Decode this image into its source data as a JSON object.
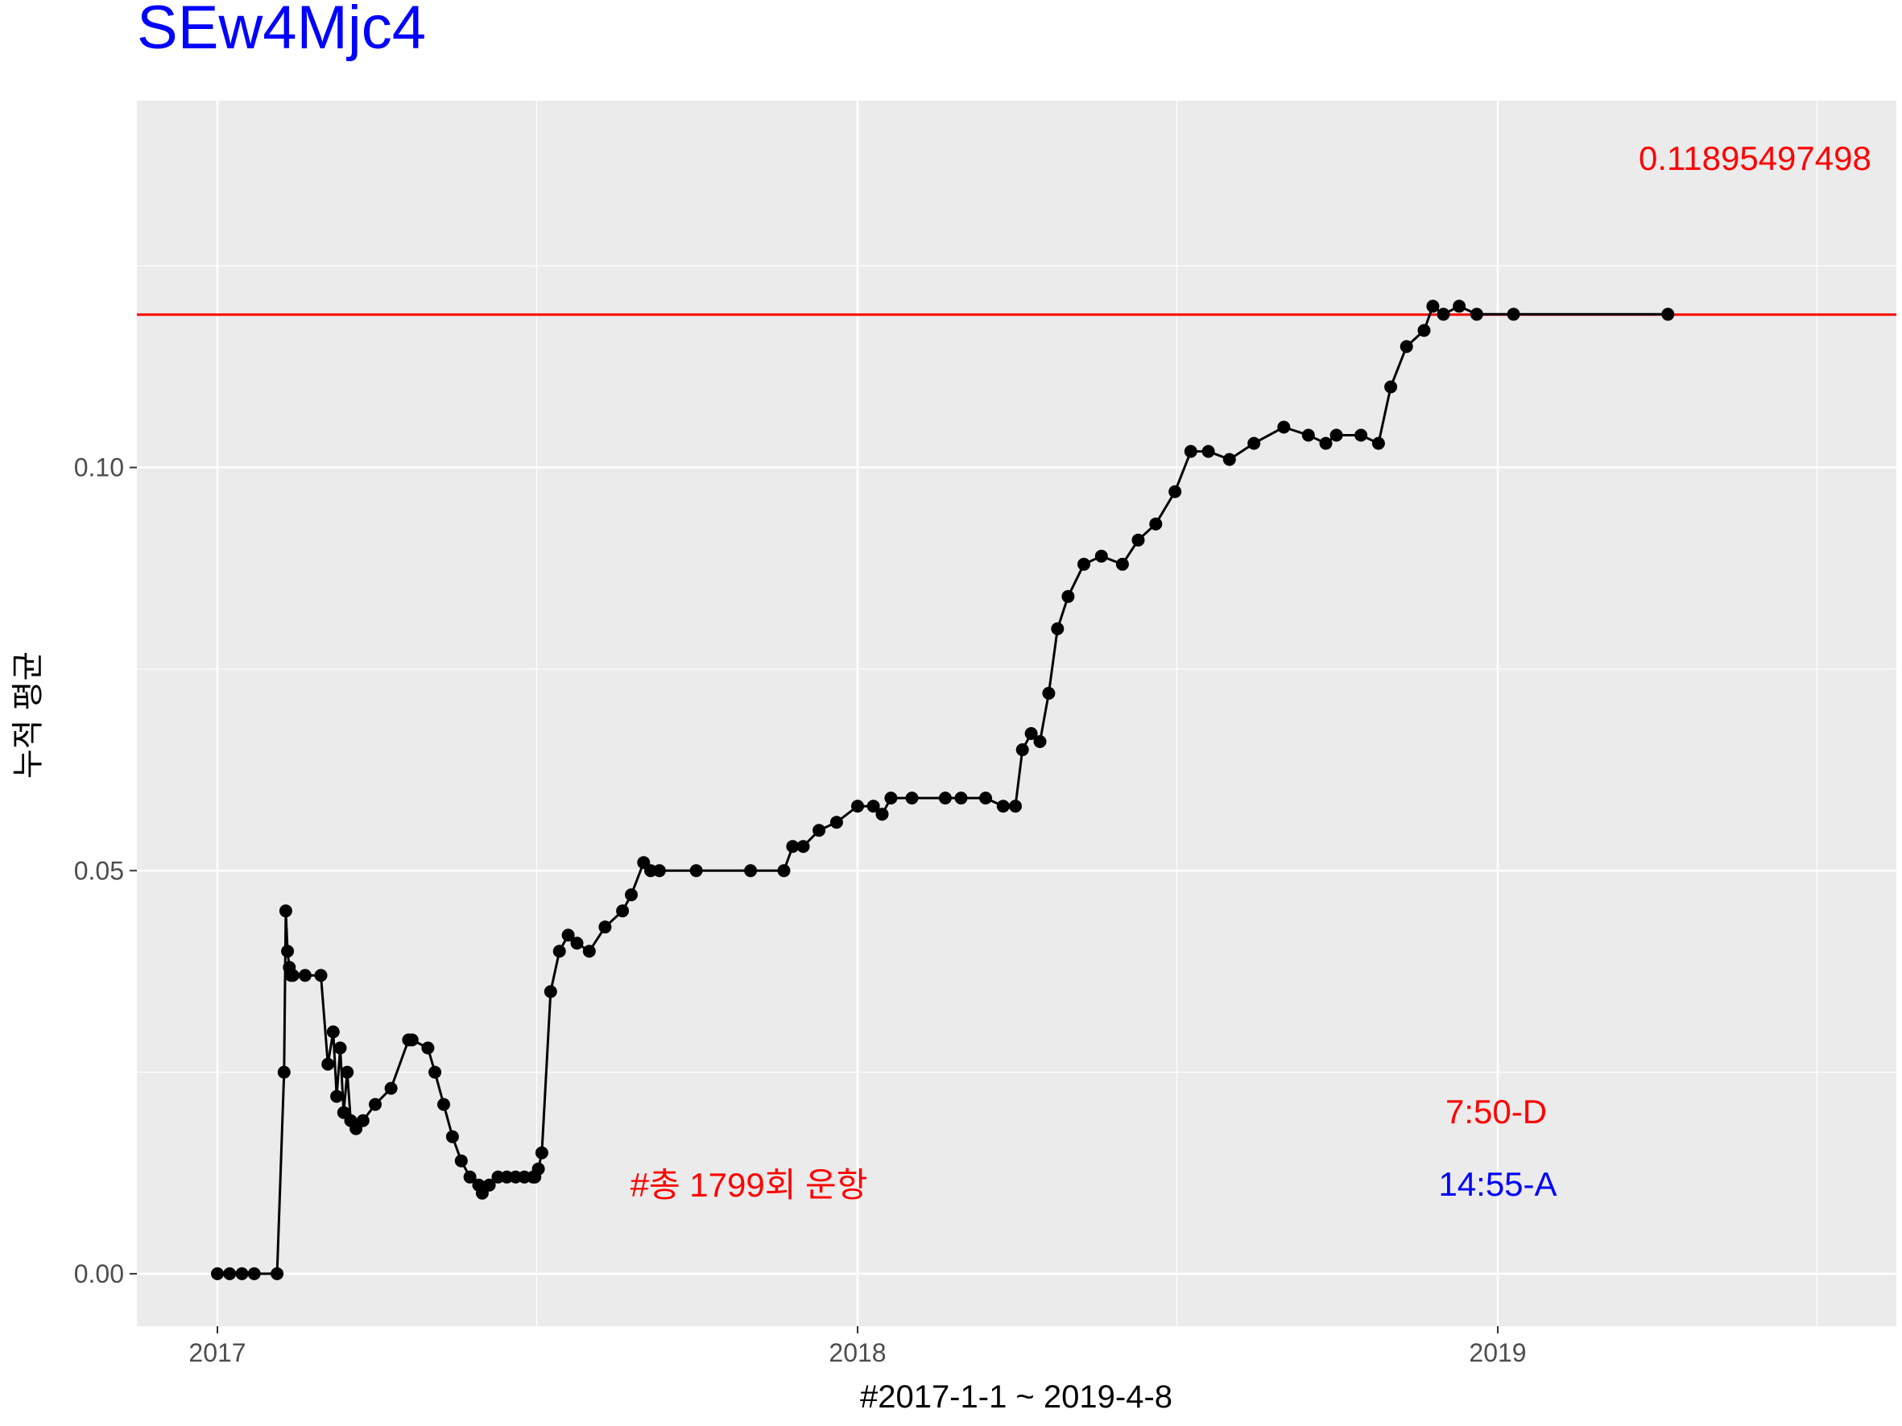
{
  "chart_data": {
    "type": "line",
    "title": "SEw4Mjc4",
    "xlabel": "#2017-1-1 ~ 2019-4-8",
    "ylabel": "누적 평균",
    "x_ticks": [
      "2017",
      "2018",
      "2019"
    ],
    "y_ticks": [
      "0.00",
      "0.05",
      "0.10"
    ],
    "ylim": [
      -0.0065,
      0.1455
    ],
    "grid": true,
    "reference_line": {
      "y": 0.118954974988,
      "label": "0.11895497498"
    },
    "annotations": [
      {
        "text": "#총 1799회 운항",
        "color": "#ff0000"
      },
      {
        "text": "7:50-D",
        "color": "#ff0000"
      },
      {
        "text": "14:55-A",
        "color": "#0000ff"
      }
    ],
    "series": [
      {
        "x": [
          "2017-01-01",
          "2017-01-08",
          "2017-01-15",
          "2017-01-22",
          "2017-02-04",
          "2017-02-08",
          "2017-02-09",
          "2017-02-10",
          "2017-02-11",
          "2017-02-12",
          "2017-02-13",
          "2017-02-20",
          "2017-03-01",
          "2017-03-05",
          "2017-03-08",
          "2017-03-10",
          "2017-03-12",
          "2017-03-14",
          "2017-03-16",
          "2017-03-18",
          "2017-03-21",
          "2017-03-25",
          "2017-04-01",
          "2017-04-10",
          "2017-04-20",
          "2017-04-22",
          "2017-05-01",
          "2017-05-05",
          "2017-05-10",
          "2017-05-15",
          "2017-05-20",
          "2017-05-25",
          "2017-05-30",
          "2017-06-01",
          "2017-06-05",
          "2017-06-10",
          "2017-06-15",
          "2017-06-20",
          "2017-06-25",
          "2017-06-30",
          "2017-07-01",
          "2017-07-03",
          "2017-07-05",
          "2017-07-10",
          "2017-07-15",
          "2017-07-20",
          "2017-07-25",
          "2017-08-01",
          "2017-08-10",
          "2017-08-20",
          "2017-08-25",
          "2017-09-01",
          "2017-09-05",
          "2017-09-10",
          "2017-10-01",
          "2017-11-01",
          "2017-11-20",
          "2017-11-25",
          "2017-12-01",
          "2017-12-10",
          "2017-12-20",
          "2018-01-01",
          "2018-01-10",
          "2018-01-15",
          "2018-01-20",
          "2018-02-01",
          "2018-02-20",
          "2018-03-01",
          "2018-03-15",
          "2018-03-25",
          "2018-04-01",
          "2018-04-05",
          "2018-04-10",
          "2018-04-15",
          "2018-04-20",
          "2018-04-25",
          "2018-05-01",
          "2018-05-10",
          "2018-05-20",
          "2018-06-01",
          "2018-06-10",
          "2018-06-20",
          "2018-07-01",
          "2018-07-10",
          "2018-07-20",
          "2018-08-01",
          "2018-08-15",
          "2018-09-01",
          "2018-09-15",
          "2018-09-25",
          "2018-10-01",
          "2018-10-15",
          "2018-10-25",
          "2018-11-01",
          "2018-11-10",
          "2018-11-20",
          "2018-11-25",
          "2018-12-01",
          "2018-12-10",
          "2018-12-20",
          "2019-01-10",
          "2019-04-08"
        ],
        "y": [
          0.0,
          0.0,
          0.0,
          0.0,
          0.0,
          0.025,
          0.045,
          0.04,
          0.038,
          0.037,
          0.037,
          0.037,
          0.037,
          0.026,
          0.03,
          0.022,
          0.028,
          0.02,
          0.025,
          0.019,
          0.018,
          0.019,
          0.021,
          0.023,
          0.029,
          0.029,
          0.028,
          0.025,
          0.021,
          0.017,
          0.014,
          0.012,
          0.011,
          0.01,
          0.011,
          0.012,
          0.012,
          0.012,
          0.012,
          0.012,
          0.012,
          0.013,
          0.015,
          0.035,
          0.04,
          0.042,
          0.041,
          0.04,
          0.043,
          0.045,
          0.047,
          0.051,
          0.05,
          0.05,
          0.05,
          0.05,
          0.05,
          0.053,
          0.053,
          0.055,
          0.056,
          0.058,
          0.058,
          0.057,
          0.059,
          0.059,
          0.059,
          0.059,
          0.059,
          0.058,
          0.058,
          0.065,
          0.067,
          0.066,
          0.072,
          0.08,
          0.084,
          0.088,
          0.089,
          0.088,
          0.091,
          0.093,
          0.097,
          0.102,
          0.102,
          0.101,
          0.103,
          0.105,
          0.104,
          0.103,
          0.104,
          0.104,
          0.103,
          0.11,
          0.115,
          0.117,
          0.12,
          0.119,
          0.12,
          0.119,
          0.119,
          0.119
        ]
      }
    ]
  }
}
